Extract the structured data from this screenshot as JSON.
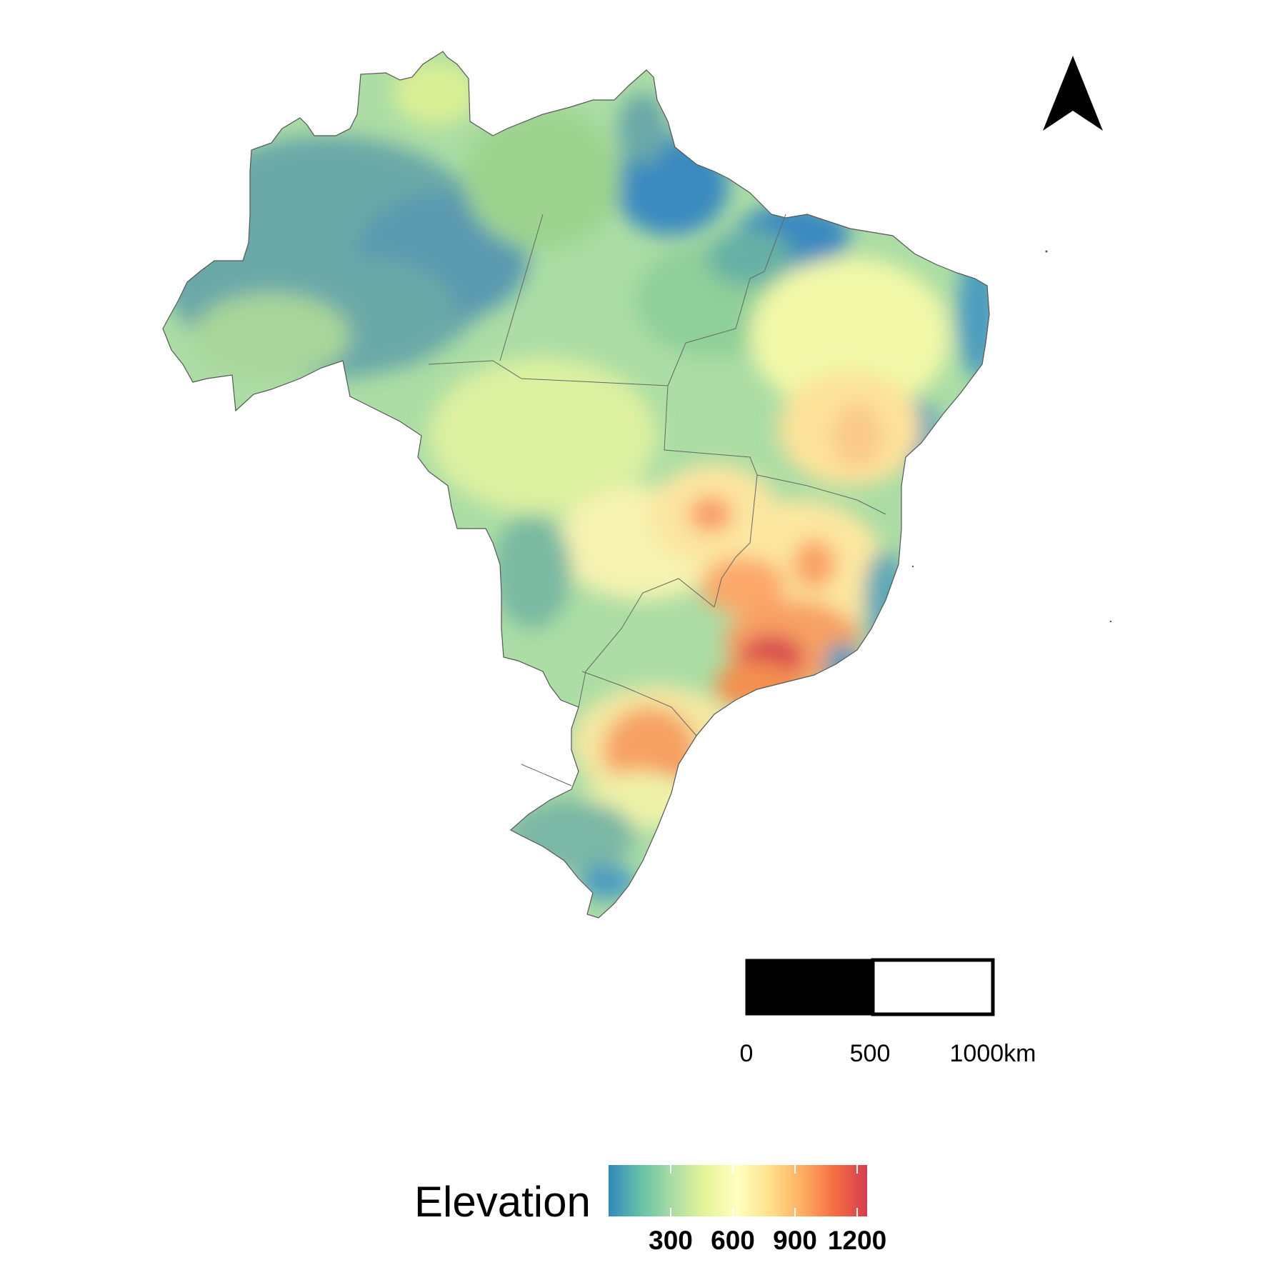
{
  "map": {
    "region": "Brazil",
    "variable": "Elevation",
    "palette": [
      "#3288bd",
      "#66c2a5",
      "#abdda4",
      "#e6f598",
      "#ffffbf",
      "#fee08b",
      "#fdae61",
      "#f46d43",
      "#d53e4f"
    ],
    "north_arrow_icon": "north-arrow-icon"
  },
  "scale_bar": {
    "labels": [
      "0",
      "500",
      "1000km"
    ],
    "segment_colors": [
      "#000000",
      "#ffffff"
    ]
  },
  "legend": {
    "title": "Elevation",
    "ticks": [
      "300",
      "600",
      "900",
      "1200"
    ],
    "range": [
      0,
      1250
    ]
  }
}
